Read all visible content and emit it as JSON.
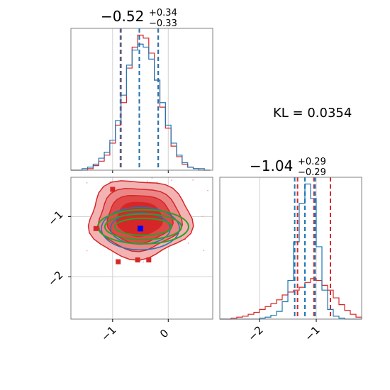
{
  "figure": {
    "kl_text": "KL = 0.0354",
    "colors": {
      "red": "#d62728",
      "blue": "#1f77b4",
      "green": "#2ca02c",
      "purple": "#7a3f6e",
      "grid": "#d0d0d0",
      "frame": "#808080"
    }
  },
  "chart_data": [
    {
      "type": "histogram",
      "panel": "top-left",
      "title_main": "−0.52",
      "title_sup": "+0.34",
      "title_sub": "−0.33",
      "xlim": [
        -1.75,
        0.8
      ],
      "xticks": [
        -1,
        0
      ],
      "grid": true,
      "quantile_lines": {
        "red": [
          -0.85,
          -0.52,
          -0.18
        ],
        "blue": [
          -0.86,
          -0.52,
          -0.18
        ]
      },
      "bins_x": [
        -1.75,
        -1.65,
        -1.55,
        -1.45,
        -1.35,
        -1.25,
        -1.15,
        -1.05,
        -0.95,
        -0.85,
        -0.75,
        -0.65,
        -0.55,
        -0.45,
        -0.35,
        -0.25,
        -0.15,
        -0.05,
        0.05,
        0.15,
        0.25,
        0.35,
        0.45,
        0.55,
        0.65
      ],
      "series": [
        {
          "color": "red",
          "values": [
            0,
            0,
            0,
            1,
            3,
            6,
            10,
            18,
            30,
            45,
            68,
            82,
            90,
            88,
            78,
            60,
            42,
            28,
            16,
            9,
            4,
            2,
            1,
            0,
            0
          ]
        },
        {
          "color": "blue",
          "values": [
            0,
            0,
            1,
            2,
            4,
            8,
            12,
            20,
            33,
            50,
            70,
            80,
            84,
            82,
            74,
            60,
            45,
            30,
            18,
            10,
            5,
            2,
            1,
            1,
            0
          ]
        }
      ]
    },
    {
      "type": "contour",
      "panel": "bottom-left",
      "xlim": [
        -1.75,
        0.8
      ],
      "ylim": [
        -2.7,
        -0.35
      ],
      "xticks": [
        -1,
        0
      ],
      "yticks": [
        -1,
        -2
      ],
      "grid": true,
      "red_center": [
        -0.52,
        -1.04
      ],
      "blue_center": [
        -0.5,
        -1.2
      ],
      "green_center": [
        -0.45,
        -1.17
      ],
      "red_outliers": [
        [
          -1.0,
          -0.55
        ],
        [
          -0.35,
          -1.72
        ],
        [
          -0.55,
          -1.72
        ],
        [
          -0.9,
          -1.75
        ],
        [
          -1.3,
          -1.2
        ]
      ]
    },
    {
      "type": "histogram",
      "panel": "bottom-right",
      "title_main": "−1.04",
      "title_sup": "+0.29",
      "title_sub": "−0.29",
      "xlim": [
        -2.7,
        -0.2
      ],
      "xticks": [
        -2,
        -1
      ],
      "grid": true,
      "quantile_lines": {
        "red": [
          -1.33,
          -1.04,
          -0.75
        ],
        "blue": [
          -1.38,
          -1.2,
          -1.02
        ]
      },
      "bins_x": [
        -2.7,
        -2.6,
        -2.5,
        -2.4,
        -2.3,
        -2.2,
        -2.1,
        -2.0,
        -1.9,
        -1.8,
        -1.7,
        -1.6,
        -1.5,
        -1.4,
        -1.3,
        -1.2,
        -1.1,
        -1.0,
        -0.9,
        -0.8,
        -0.7,
        -0.6,
        -0.5,
        -0.4,
        -0.3
      ],
      "series": [
        {
          "color": "red",
          "values": [
            0,
            0,
            1,
            2,
            3,
            5,
            7,
            10,
            13,
            16,
            20,
            25,
            28,
            30,
            33,
            38,
            42,
            40,
            35,
            30,
            22,
            15,
            9,
            5,
            2
          ]
        },
        {
          "color": "blue",
          "values": [
            0,
            0,
            0,
            0,
            0,
            0,
            0,
            1,
            2,
            4,
            8,
            18,
            40,
            80,
            120,
            140,
            125,
            75,
            30,
            10,
            3,
            1,
            0,
            0,
            0
          ]
        }
      ]
    }
  ]
}
